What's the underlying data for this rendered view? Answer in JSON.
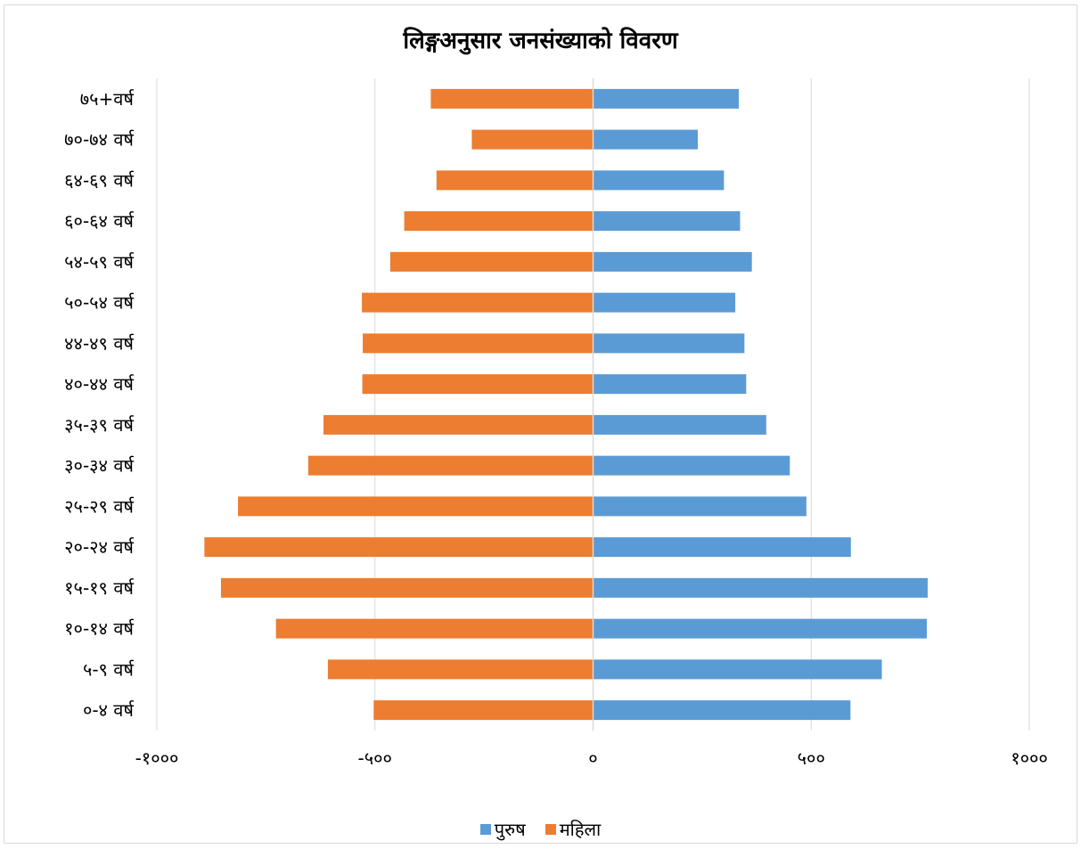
{
  "chart_data": {
    "type": "bar",
    "orientation": "horizontal",
    "title": "लिङ्गअनुसार जनसंख्याको विवरण",
    "categories": [
      "०-४ वर्ष",
      "५-९ वर्ष",
      "१०-१४ वर्ष",
      "१५-१९ वर्ष",
      "२०-२४ वर्ष",
      "२५-२९ वर्ष",
      "३०-३४ वर्ष",
      "३५-३९ वर्ष",
      "४०-४४ वर्ष",
      "४४-४९ वर्ष",
      "५०-५४ वर्ष",
      "५४-५९ वर्ष",
      "६०-६४ वर्ष",
      "६४-६९ वर्ष",
      "७०-७४ वर्ष",
      "७५+वर्ष"
    ],
    "series": [
      {
        "name": "पुरुष",
        "color": "#5b9bd5",
        "values": [
          590,
          662,
          765,
          767,
          591,
          489,
          451,
          397,
          351,
          347,
          326,
          364,
          337,
          300,
          240,
          334
        ]
      },
      {
        "name": "महिला",
        "color": "#ed7d31",
        "values": [
          -503,
          -608,
          -727,
          -853,
          -891,
          -814,
          -653,
          -618,
          -529,
          -528,
          -530,
          -465,
          -433,
          -359,
          -278,
          -372
        ]
      }
    ],
    "xlim": [
      -1000,
      1000
    ],
    "xticks": [
      -1000,
      -500,
      0,
      500,
      1000
    ],
    "xtick_labels": [
      "-१०००",
      "-५००",
      "०",
      "५००",
      "१०००"
    ],
    "grid": true,
    "legend_position": "bottom"
  }
}
